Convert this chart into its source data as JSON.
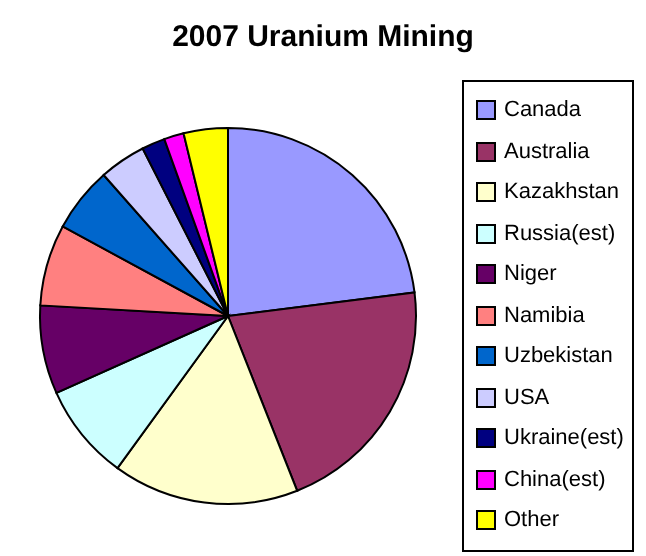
{
  "chart_data": {
    "type": "pie",
    "title": "2007 Uranium Mining",
    "categories": [
      "Canada",
      "Australia",
      "Kazakhstan",
      "Russia(est)",
      "Niger",
      "Namibia",
      "Uzbekistan",
      "USA",
      "Ukraine(est)",
      "China(est)",
      "Other"
    ],
    "values": [
      23,
      21,
      16,
      8.3,
      7.6,
      7,
      5.6,
      4,
      2,
      1.7,
      3.8
    ],
    "colors": [
      "#9999ff",
      "#993366",
      "#ffffcc",
      "#ccffff",
      "#660066",
      "#ff8080",
      "#0066cc",
      "#ccccff",
      "#000080",
      "#ff00ff",
      "#ffff00"
    ],
    "legend": "right"
  }
}
